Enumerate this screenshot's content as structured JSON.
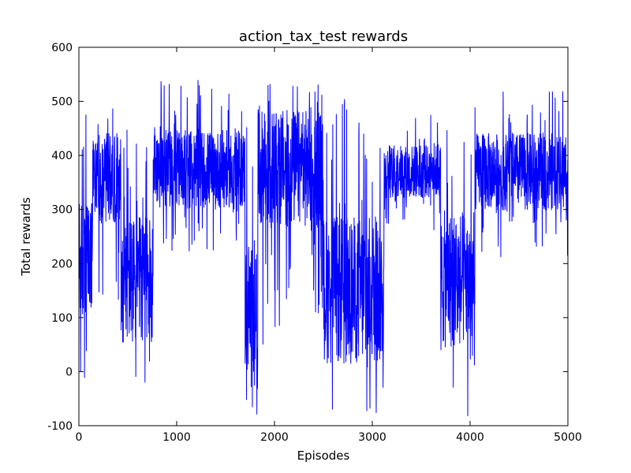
{
  "chart_data": {
    "type": "line",
    "title": "action_tax_test rewards",
    "xlabel": "Episodes",
    "ylabel": "Total rewards",
    "xlim": [
      0,
      5000
    ],
    "ylim": [
      -100,
      600
    ],
    "xticks": [
      0,
      1000,
      2000,
      3000,
      4000,
      5000
    ],
    "yticks": [
      -100,
      0,
      100,
      200,
      300,
      400,
      500,
      600
    ],
    "grid": false,
    "legend": "none",
    "series": [
      {
        "color": "#0000ff",
        "description_of_regimes": [
          {
            "x": [
              0,
              140
            ],
            "mean": 200,
            "lo": -30,
            "hi": 480
          },
          {
            "x": [
              140,
              430
            ],
            "mean": 360,
            "lo": 120,
            "hi": 490
          },
          {
            "x": [
              430,
              760
            ],
            "mean": 170,
            "lo": -60,
            "hi": 460
          },
          {
            "x": [
              760,
              1700
            ],
            "mean": 375,
            "lo": 220,
            "hi": 540
          },
          {
            "x": [
              1700,
              1830
            ],
            "mean": 120,
            "lo": -80,
            "hi": 480
          },
          {
            "x": [
              1830,
              2500
            ],
            "mean": 375,
            "lo": 50,
            "hi": 540
          },
          {
            "x": [
              2500,
              3120
            ],
            "mean": 150,
            "lo": -100,
            "hi": 510
          },
          {
            "x": [
              3120,
              3700
            ],
            "mean": 370,
            "lo": 260,
            "hi": 480
          },
          {
            "x": [
              3700,
              4050
            ],
            "mean": 170,
            "lo": -90,
            "hi": 480
          },
          {
            "x": [
              4050,
              5000
            ],
            "mean": 370,
            "lo": 210,
            "hi": 530
          }
        ]
      }
    ]
  }
}
